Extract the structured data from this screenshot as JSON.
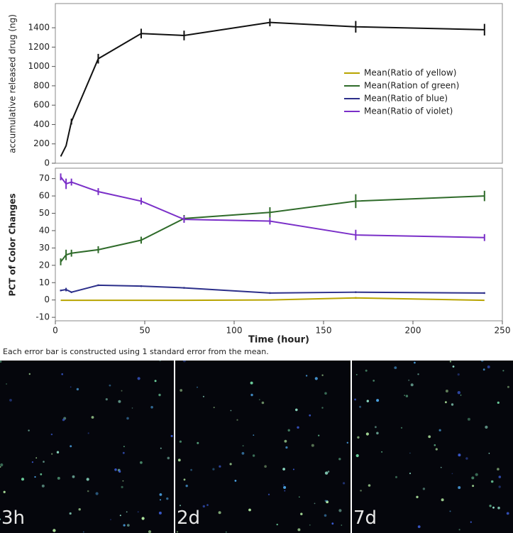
{
  "chart_data": [
    {
      "type": "line",
      "ylabel": "accumulative released drug (ng)",
      "x": [
        3,
        6,
        9,
        24,
        48,
        72,
        120,
        168,
        240
      ],
      "values": [
        70,
        180,
        430,
        1080,
        1340,
        1320,
        1455,
        1410,
        1380
      ],
      "errors": [
        0,
        0,
        30,
        50,
        50,
        50,
        40,
        60,
        60
      ],
      "color": "#111111",
      "xlim": [
        0,
        250
      ],
      "ylim": [
        0,
        1650
      ],
      "yticks": [
        0,
        200,
        400,
        600,
        800,
        1000,
        1200,
        1400
      ]
    },
    {
      "type": "line",
      "ylabel": "PCT of Color Changes",
      "xlabel": "Time (hour)",
      "x": [
        3,
        6,
        9,
        24,
        48,
        72,
        120,
        168,
        240
      ],
      "series": [
        {
          "name": "Mean(Ratio of yellow)",
          "color": "#b8a400",
          "values": [
            -0.2,
            -0.2,
            -0.2,
            -0.2,
            -0.2,
            -0.2,
            0,
            1.2,
            -0.2
          ],
          "errors": [
            0,
            0,
            0,
            0,
            0,
            0,
            0,
            0.5,
            0
          ]
        },
        {
          "name": "Mean(Ration of green)",
          "color": "#2f6b2a",
          "values": [
            22,
            26,
            27,
            29,
            34.5,
            47,
            50.5,
            57,
            60
          ],
          "errors": [
            2,
            3,
            2,
            2,
            2,
            2,
            3,
            4,
            3
          ]
        },
        {
          "name": "Mean(Ratio of blue)",
          "color": "#2c2f8a",
          "values": [
            5.5,
            6,
            4.5,
            8.5,
            8,
            7,
            4,
            4.5,
            4
          ],
          "errors": [
            0.5,
            1,
            0.5,
            0.5,
            0.5,
            0.5,
            0.5,
            0.5,
            0.5
          ]
        },
        {
          "name": "Mean(Ratio of violet)",
          "color": "#7a2fc8",
          "values": [
            71,
            67,
            68,
            62.5,
            57,
            46.5,
            45.5,
            37.5,
            36
          ],
          "errors": [
            2,
            3,
            2,
            2,
            2,
            2,
            2,
            3,
            2
          ]
        }
      ],
      "xlim": [
        0,
        250
      ],
      "xticks": [
        0,
        50,
        100,
        150,
        200,
        250
      ],
      "ylim": [
        -12,
        76
      ],
      "yticks": [
        -10,
        0,
        10,
        20,
        30,
        40,
        50,
        60,
        70
      ],
      "legend": "upper-right"
    }
  ],
  "caption": "Each error bar is constructed using 1 standard error from the mean.",
  "panels": [
    {
      "label": "3h"
    },
    {
      "label": "2d"
    },
    {
      "label": "7d"
    }
  ]
}
